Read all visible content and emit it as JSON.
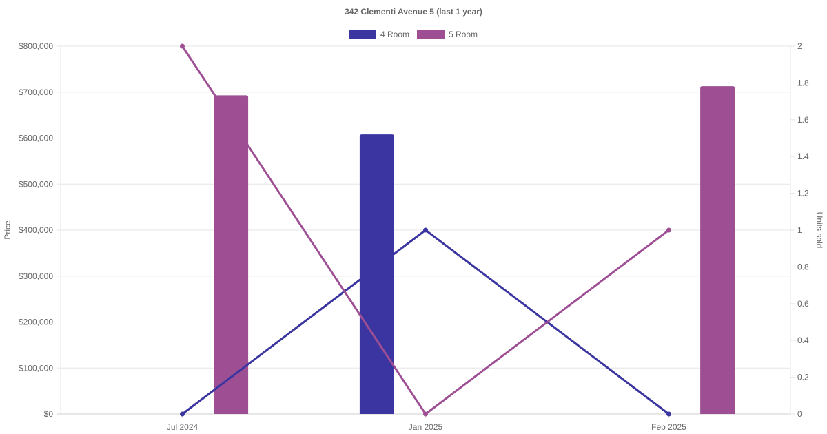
{
  "chart_data": {
    "type": "bar+line",
    "title": "342 Clementi Avenue 5 (last 1 year)",
    "categories": [
      "Jul 2024",
      "Jan 2025",
      "Feb 2025"
    ],
    "y_left": {
      "label": "Price",
      "min": 0,
      "max": 800000,
      "step": 100000,
      "tick_labels": [
        "$0",
        "$100,000",
        "$200,000",
        "$300,000",
        "$400,000",
        "$500,000",
        "$600,000",
        "$700,000",
        "$800,000"
      ]
    },
    "y_right": {
      "label": "Units sold",
      "min": 0,
      "max": 2,
      "step": 0.2,
      "tick_labels": [
        "0",
        "0.2",
        "0.4",
        "0.6",
        "0.8",
        "1",
        "1.2",
        "1.4",
        "1.6",
        "1.8",
        "2"
      ]
    },
    "legend": {
      "placement": "top-center"
    },
    "grid": true,
    "series": [
      {
        "name": "4 Room",
        "color": "#3a35a0",
        "price": [
          null,
          608000,
          null
        ],
        "units_sold": [
          0,
          1,
          0
        ]
      },
      {
        "name": "5 Room",
        "color": "#9e4f94",
        "price": [
          693000,
          null,
          713000
        ],
        "units_sold": [
          2,
          0,
          1
        ]
      }
    ]
  }
}
